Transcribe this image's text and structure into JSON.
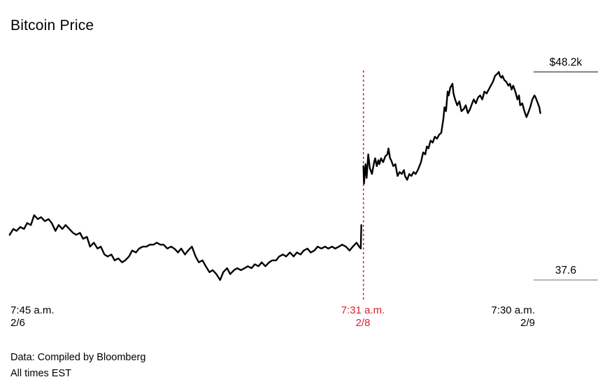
{
  "header": {
    "title_note": "chart title bound from chart_data.title"
  },
  "footer": {
    "source": "Data: Compiled by Bloomberg",
    "timezone_note": "All times EST"
  },
  "colors": {
    "background": "#ffffff",
    "line": "#000000",
    "event": "#d9232e",
    "grid_high": "#3a3a3a",
    "grid_low": "#8c8c8c",
    "text": "#000000"
  },
  "chart_data": {
    "type": "line",
    "title": "Bitcoin Price",
    "unit": "USD thousands",
    "ylim": [
      37.6,
      48.2
    ],
    "grid": "right-side min/max tick lines only",
    "legend": "none",
    "y_ticks": [
      {
        "label": "$48.2k",
        "value": 48.2,
        "line_color": "#3a3a3a"
      },
      {
        "label": "37.6",
        "value": 37.6,
        "line_color": "#8c8c8c"
      }
    ],
    "x_ticks": [
      {
        "time": "7:45 a.m.",
        "date": "2/6",
        "align": "left",
        "highlight": false
      },
      {
        "time": "7:31 a.m.",
        "date": "2/8",
        "align": "center",
        "highlight": true
      },
      {
        "time": "7:30 a.m.",
        "date": "2/9",
        "align": "right",
        "highlight": false
      }
    ],
    "event": {
      "x_frac": 0.665,
      "time": "7:31 a.m.",
      "date": "2/8",
      "style": "red dashed vertical line with price gap in series"
    },
    "series": [
      {
        "name": "Bitcoin price ($k)",
        "segments": [
          [
            [
              0.001,
              39.9
            ],
            [
              0.008,
              40.2
            ],
            [
              0.014,
              40.1
            ],
            [
              0.021,
              40.3
            ],
            [
              0.028,
              40.2
            ],
            [
              0.034,
              40.5
            ],
            [
              0.041,
              40.4
            ],
            [
              0.047,
              40.9
            ],
            [
              0.054,
              40.7
            ],
            [
              0.06,
              40.8
            ],
            [
              0.067,
              40.6
            ],
            [
              0.074,
              40.7
            ],
            [
              0.08,
              40.5
            ],
            [
              0.087,
              40.1
            ],
            [
              0.093,
              40.4
            ],
            [
              0.1,
              40.2
            ],
            [
              0.106,
              40.4
            ],
            [
              0.113,
              40.2
            ],
            [
              0.12,
              40.0
            ],
            [
              0.126,
              39.9
            ],
            [
              0.133,
              40.0
            ],
            [
              0.139,
              39.7
            ],
            [
              0.146,
              39.8
            ],
            [
              0.152,
              39.3
            ],
            [
              0.159,
              39.5
            ],
            [
              0.166,
              39.2
            ],
            [
              0.172,
              39.3
            ],
            [
              0.179,
              38.9
            ],
            [
              0.185,
              38.8
            ],
            [
              0.192,
              38.9
            ],
            [
              0.198,
              38.6
            ],
            [
              0.205,
              38.7
            ],
            [
              0.212,
              38.5
            ],
            [
              0.218,
              38.6
            ],
            [
              0.225,
              38.8
            ],
            [
              0.231,
              39.1
            ],
            [
              0.238,
              39.0
            ],
            [
              0.244,
              39.2
            ],
            [
              0.251,
              39.3
            ],
            [
              0.258,
              39.3
            ],
            [
              0.264,
              39.4
            ],
            [
              0.271,
              39.4
            ],
            [
              0.277,
              39.5
            ],
            [
              0.284,
              39.4
            ],
            [
              0.29,
              39.4
            ],
            [
              0.297,
              39.2
            ],
            [
              0.304,
              39.3
            ],
            [
              0.31,
              39.2
            ],
            [
              0.317,
              39.0
            ],
            [
              0.323,
              39.2
            ],
            [
              0.33,
              38.9
            ],
            [
              0.336,
              39.1
            ],
            [
              0.343,
              39.3
            ],
            [
              0.35,
              38.8
            ],
            [
              0.356,
              38.5
            ],
            [
              0.363,
              38.6
            ],
            [
              0.369,
              38.3
            ],
            [
              0.376,
              38.0
            ],
            [
              0.382,
              38.1
            ],
            [
              0.389,
              37.9
            ],
            [
              0.396,
              37.6
            ],
            [
              0.402,
              38.0
            ],
            [
              0.409,
              38.2
            ],
            [
              0.415,
              37.9
            ],
            [
              0.422,
              38.1
            ],
            [
              0.428,
              38.2
            ],
            [
              0.435,
              38.1
            ],
            [
              0.442,
              38.2
            ],
            [
              0.448,
              38.3
            ],
            [
              0.455,
              38.2
            ],
            [
              0.461,
              38.4
            ],
            [
              0.468,
              38.3
            ],
            [
              0.474,
              38.5
            ],
            [
              0.481,
              38.3
            ],
            [
              0.488,
              38.5
            ],
            [
              0.494,
              38.6
            ],
            [
              0.501,
              38.6
            ],
            [
              0.507,
              38.8
            ],
            [
              0.514,
              38.9
            ],
            [
              0.52,
              38.8
            ],
            [
              0.527,
              39.0
            ],
            [
              0.534,
              38.8
            ],
            [
              0.54,
              39.0
            ],
            [
              0.547,
              38.9
            ],
            [
              0.553,
              39.1
            ],
            [
              0.56,
              39.2
            ],
            [
              0.566,
              39.0
            ],
            [
              0.573,
              39.1
            ],
            [
              0.579,
              39.3
            ],
            [
              0.586,
              39.2
            ],
            [
              0.593,
              39.3
            ],
            [
              0.599,
              39.2
            ],
            [
              0.606,
              39.3
            ],
            [
              0.612,
              39.2
            ],
            [
              0.619,
              39.3
            ],
            [
              0.625,
              39.4
            ],
            [
              0.632,
              39.3
            ],
            [
              0.639,
              39.1
            ],
            [
              0.645,
              39.3
            ],
            [
              0.652,
              39.5
            ],
            [
              0.657,
              39.3
            ],
            [
              0.66,
              39.2
            ],
            [
              0.661,
              40.4
            ]
          ],
          [
            [
              0.665,
              43.4
            ],
            [
              0.666,
              42.5
            ],
            [
              0.669,
              43.5
            ],
            [
              0.671,
              42.8
            ],
            [
              0.674,
              44.0
            ],
            [
              0.677,
              43.3
            ],
            [
              0.681,
              43.0
            ],
            [
              0.685,
              43.6
            ],
            [
              0.687,
              43.8
            ],
            [
              0.69,
              43.4
            ],
            [
              0.693,
              43.7
            ],
            [
              0.695,
              43.5
            ],
            [
              0.698,
              43.8
            ],
            [
              0.702,
              43.6
            ],
            [
              0.706,
              43.9
            ],
            [
              0.71,
              44.0
            ],
            [
              0.712,
              44.3
            ],
            [
              0.715,
              43.8
            ],
            [
              0.717,
              43.7
            ],
            [
              0.721,
              43.4
            ],
            [
              0.725,
              43.5
            ],
            [
              0.729,
              42.9
            ],
            [
              0.733,
              43.1
            ],
            [
              0.737,
              43.0
            ],
            [
              0.741,
              43.2
            ],
            [
              0.743,
              42.9
            ],
            [
              0.747,
              42.7
            ],
            [
              0.751,
              43.0
            ],
            [
              0.755,
              42.9
            ],
            [
              0.759,
              43.1
            ],
            [
              0.763,
              43.0
            ],
            [
              0.767,
              43.2
            ],
            [
              0.773,
              43.6
            ],
            [
              0.777,
              44.1
            ],
            [
              0.781,
              44.0
            ],
            [
              0.784,
              44.4
            ],
            [
              0.787,
              44.3
            ],
            [
              0.791,
              44.7
            ],
            [
              0.795,
              44.6
            ],
            [
              0.799,
              44.9
            ],
            [
              0.803,
              44.8
            ],
            [
              0.807,
              45.0
            ],
            [
              0.811,
              45.1
            ],
            [
              0.815,
              45.8
            ],
            [
              0.817,
              46.4
            ],
            [
              0.82,
              46.2
            ],
            [
              0.823,
              47.2
            ],
            [
              0.825,
              47.0
            ],
            [
              0.828,
              47.4
            ],
            [
              0.832,
              47.6
            ],
            [
              0.834,
              47.1
            ],
            [
              0.837,
              46.8
            ],
            [
              0.841,
              46.5
            ],
            [
              0.845,
              46.7
            ],
            [
              0.849,
              46.2
            ],
            [
              0.853,
              46.3
            ],
            [
              0.857,
              46.5
            ],
            [
              0.861,
              46.1
            ],
            [
              0.865,
              46.3
            ],
            [
              0.869,
              46.6
            ],
            [
              0.872,
              46.8
            ],
            [
              0.876,
              46.6
            ],
            [
              0.88,
              46.9
            ],
            [
              0.884,
              47.0
            ],
            [
              0.888,
              46.8
            ],
            [
              0.892,
              47.2
            ],
            [
              0.896,
              47.1
            ],
            [
              0.9,
              47.3
            ],
            [
              0.904,
              47.5
            ],
            [
              0.908,
              47.7
            ],
            [
              0.912,
              48.0
            ],
            [
              0.916,
              48.1
            ],
            [
              0.919,
              48.2
            ],
            [
              0.921,
              48.0
            ],
            [
              0.924,
              47.9
            ],
            [
              0.926,
              48.0
            ],
            [
              0.929,
              47.8
            ],
            [
              0.933,
              47.7
            ],
            [
              0.937,
              47.5
            ],
            [
              0.94,
              47.6
            ],
            [
              0.943,
              47.3
            ],
            [
              0.946,
              47.5
            ],
            [
              0.95,
              47.2
            ],
            [
              0.954,
              46.8
            ],
            [
              0.957,
              47.0
            ],
            [
              0.959,
              46.5
            ],
            [
              0.963,
              46.6
            ],
            [
              0.967,
              46.2
            ],
            [
              0.971,
              45.9
            ],
            [
              0.974,
              46.1
            ],
            [
              0.978,
              46.4
            ],
            [
              0.982,
              46.8
            ],
            [
              0.986,
              47.0
            ],
            [
              0.988,
              46.9
            ],
            [
              0.991,
              46.7
            ],
            [
              0.995,
              46.4
            ],
            [
              0.997,
              46.1
            ]
          ]
        ]
      }
    ]
  }
}
